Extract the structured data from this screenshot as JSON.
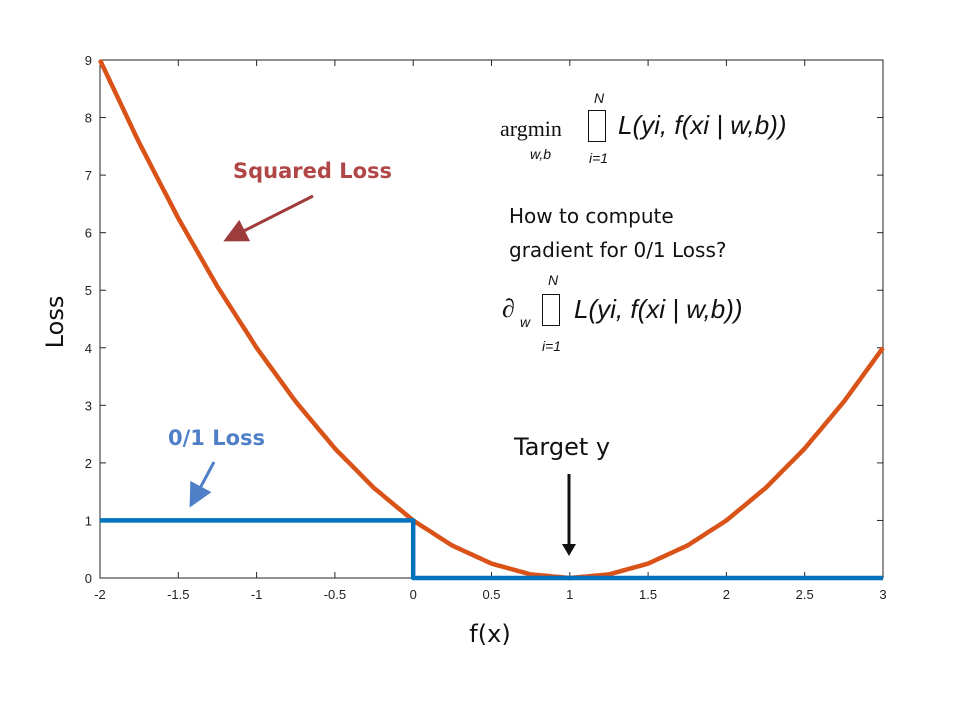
{
  "chart_data": {
    "type": "line",
    "xlabel": "f(x)",
    "ylabel": "Loss",
    "xlim": [
      -2,
      3
    ],
    "ylim": [
      0,
      9
    ],
    "x_ticks": [
      "-2",
      "-1.5",
      "-1",
      "-0.5",
      "0",
      "0.5",
      "1",
      "1.5",
      "2",
      "2.5",
      "3"
    ],
    "y_ticks": [
      "0",
      "1",
      "2",
      "3",
      "4",
      "5",
      "6",
      "7",
      "8",
      "9"
    ],
    "grid": false,
    "series": [
      {
        "name": "Squared Loss",
        "color": "#d95319",
        "x": [
          -2,
          -1.75,
          -1.5,
          -1.25,
          -1,
          -0.75,
          -0.5,
          -0.25,
          0,
          0.25,
          0.5,
          0.75,
          1,
          1.25,
          1.5,
          1.75,
          2,
          2.25,
          2.5,
          2.75,
          3
        ],
        "y": [
          9,
          7.5625,
          6.25,
          5.0625,
          4,
          3.0625,
          2.25,
          1.5625,
          1,
          0.5625,
          0.25,
          0.0625,
          0,
          0.0625,
          0.25,
          0.5625,
          1,
          1.5625,
          2.25,
          3.0625,
          4
        ]
      },
      {
        "name": "0/1 Loss",
        "color": "#0072bd",
        "x": [
          -2,
          0,
          0,
          3
        ],
        "y": [
          1,
          1,
          0,
          0
        ]
      }
    ],
    "annotations": {
      "squared_label": "Squared Loss",
      "zero_one_label": "0/1 Loss",
      "target_label": "Target y",
      "question_line1": "How to compute",
      "question_line2": "gradient for 0/1 Loss?"
    }
  },
  "equations": {
    "argmin_op": "argmin",
    "argmin_sub": "w,b",
    "sum_upper": "N",
    "sum_lower": "i=1",
    "loss_expr": "L(yi, f(xi | w,b))",
    "partial_op": "∂",
    "partial_sub": "w"
  }
}
